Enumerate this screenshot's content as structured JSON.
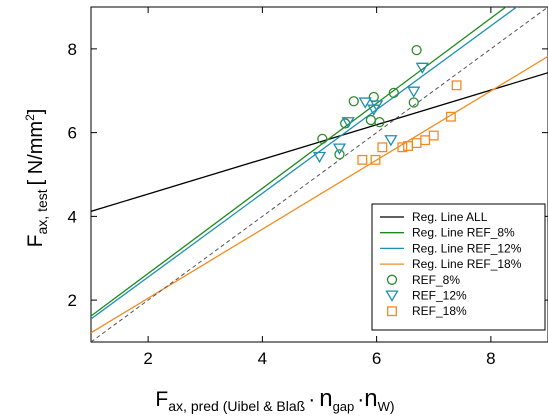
{
  "chart_data": {
    "type": "scatter",
    "xlabel": {
      "main": "F",
      "sub1": "ax, pred",
      "sub2": " (Uibel & Blaß",
      "dot1": "·",
      "n1": "n",
      "n1sub": "gap",
      "dot2": "·",
      "n2": "n",
      "n2sub": "W",
      "close": ")"
    },
    "ylabel": {
      "main": "F",
      "sub": "ax, test",
      "unit_open": "[ N/mm",
      "unit_sup": "2",
      "unit_close": "]"
    },
    "xlim": [
      1,
      9
    ],
    "ylim": [
      1,
      9
    ],
    "xticks": [
      "2",
      "4",
      "6",
      "8"
    ],
    "yticks": [
      "2",
      "4",
      "6",
      "8"
    ],
    "legend_position": "bottom-right",
    "lines": [
      {
        "name": "Reg. Line ALL",
        "color": "#000000",
        "points": [
          [
            1,
            4.12
          ],
          [
            9,
            7.43
          ]
        ]
      },
      {
        "name": "Reg. Line REF_8%",
        "color": "#1a8a1a",
        "points": [
          [
            1,
            1.62
          ],
          [
            9,
            9.75
          ]
        ]
      },
      {
        "name": "Reg. Line REF_12%",
        "color": "#1f8fb5",
        "points": [
          [
            1,
            1.55
          ],
          [
            9,
            9.55
          ]
        ]
      },
      {
        "name": "Reg. Line REF_18%",
        "color": "#f28c1e",
        "points": [
          [
            1,
            1.22
          ],
          [
            9,
            7.82
          ]
        ]
      },
      {
        "name": "",
        "color": "#555555",
        "dashed": true,
        "points": [
          [
            1,
            1
          ],
          [
            9,
            9
          ]
        ]
      }
    ],
    "series": [
      {
        "name": "REF_8%",
        "marker": "circle",
        "color": "#2e8b2e",
        "points": [
          [
            5.05,
            5.85
          ],
          [
            5.35,
            5.48
          ],
          [
            5.45,
            6.22
          ],
          [
            5.6,
            6.75
          ],
          [
            5.9,
            6.3
          ],
          [
            5.95,
            6.85
          ],
          [
            6.05,
            6.25
          ],
          [
            6.3,
            6.95
          ],
          [
            6.65,
            6.72
          ],
          [
            6.7,
            7.97
          ]
        ]
      },
      {
        "name": "REF_12%",
        "marker": "triangle-down",
        "color": "#1f8fb5",
        "points": [
          [
            5.0,
            5.42
          ],
          [
            5.35,
            5.62
          ],
          [
            5.5,
            6.25
          ],
          [
            5.8,
            6.72
          ],
          [
            5.95,
            6.55
          ],
          [
            6.0,
            6.65
          ],
          [
            6.25,
            5.82
          ],
          [
            6.65,
            6.98
          ],
          [
            6.8,
            7.55
          ]
        ]
      },
      {
        "name": "REF_18%",
        "marker": "square",
        "color": "#f28c1e",
        "points": [
          [
            5.75,
            5.35
          ],
          [
            5.98,
            5.35
          ],
          [
            6.1,
            5.65
          ],
          [
            6.45,
            5.65
          ],
          [
            6.55,
            5.68
          ],
          [
            6.7,
            5.75
          ],
          [
            6.85,
            5.82
          ],
          [
            7.0,
            5.93
          ],
          [
            7.3,
            6.38
          ],
          [
            7.4,
            7.13
          ]
        ]
      }
    ]
  }
}
